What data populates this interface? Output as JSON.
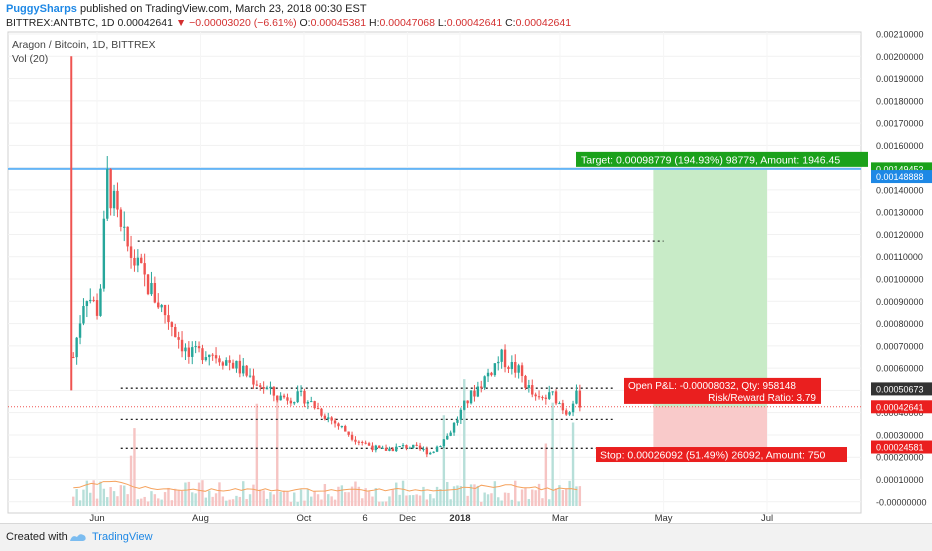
{
  "header": {
    "author": "PuggySharps",
    "published_text": "published on TradingView.com, March 23, 2018 00:30 EST",
    "symbol": "BITTREX:ANTBTC, 1D",
    "last": "0.00042641",
    "change": "−0.00003020 (−6.61%)",
    "o_label": "O:",
    "o_value": "0.00045381",
    "h_label": "H:",
    "h_value": "0.00047068",
    "l_label": "L:",
    "l_value": "0.00042641",
    "c_label": "C:",
    "c_value": "0.00042641"
  },
  "legend": {
    "title": "Aragon / Bitcoin, 1D, BITTREX",
    "volume": "Vol (20)"
  },
  "footer": {
    "created_with": "Created with",
    "brand": "TradingView"
  },
  "colors": {
    "up": "#26a69a",
    "down": "#ef5350",
    "target_zone": "#c8ebc7",
    "stop_zone": "#f9caca",
    "target_label": "#1ba11b",
    "stop_label": "#ea1f1f",
    "horizontal_line": "#64b5f6"
  },
  "chart_data": {
    "type": "candlestick",
    "ylim": [
      -1e-05,
      0.0021
    ],
    "y_ticks": [
      "0.00210000",
      "0.00200000",
      "0.00190000",
      "0.00180000",
      "0.00170000",
      "0.00160000",
      "0.00150000",
      "0.00140000",
      "0.00130000",
      "0.00120000",
      "0.00110000",
      "0.00100000",
      "0.00090000",
      "0.00080000",
      "0.00070000",
      "0.00060000",
      "0.00050000",
      "0.00040000",
      "0.00030000",
      "0.00020000",
      "0.00010000",
      "-0.00000000"
    ],
    "x_ticks": [
      "Jun",
      "Aug",
      "Oct",
      "6",
      "Dec",
      "2018",
      "Mar",
      "May",
      "Jul"
    ],
    "approx_close_path": [
      {
        "date": "2017-05-18",
        "price": 0.00065
      },
      {
        "date": "2017-05-25",
        "price": 0.00095
      },
      {
        "date": "2017-06-02",
        "price": 0.00085
      },
      {
        "date": "2017-06-07",
        "price": 0.00145
      },
      {
        "date": "2017-06-15",
        "price": 0.0012
      },
      {
        "date": "2017-06-25",
        "price": 0.00105
      },
      {
        "date": "2017-07-05",
        "price": 0.00092
      },
      {
        "date": "2017-07-15",
        "price": 0.0008
      },
      {
        "date": "2017-07-25",
        "price": 0.00065
      },
      {
        "date": "2017-08-05",
        "price": 0.00068
      },
      {
        "date": "2017-08-20",
        "price": 0.00062
      },
      {
        "date": "2017-09-01",
        "price": 0.00055
      },
      {
        "date": "2017-09-15",
        "price": 0.00047
      },
      {
        "date": "2017-10-01",
        "price": 0.00047
      },
      {
        "date": "2017-10-15",
        "price": 0.00038
      },
      {
        "date": "2017-11-01",
        "price": 0.00028
      },
      {
        "date": "2017-11-15",
        "price": 0.00023
      },
      {
        "date": "2017-12-01",
        "price": 0.00025
      },
      {
        "date": "2017-12-15",
        "price": 0.00022
      },
      {
        "date": "2017-12-25",
        "price": 0.0003
      },
      {
        "date": "2018-01-05",
        "price": 0.00045
      },
      {
        "date": "2018-01-15",
        "price": 0.00055
      },
      {
        "date": "2018-01-25",
        "price": 0.00065
      },
      {
        "date": "2018-02-05",
        "price": 0.00058
      },
      {
        "date": "2018-02-15",
        "price": 0.00045
      },
      {
        "date": "2018-02-25",
        "price": 0.00048
      },
      {
        "date": "2018-03-05",
        "price": 0.0004
      },
      {
        "date": "2018-03-10",
        "price": 0.00048
      },
      {
        "date": "2018-03-14",
        "price": 0.00043
      }
    ],
    "dotted_levels": [
      {
        "price": 0.00117,
        "from": "2017-06-25",
        "to": "2018-05-01"
      },
      {
        "price": 0.00051,
        "from": "2017-06-15",
        "to": "2018-04-01"
      },
      {
        "price": 0.00037,
        "from": "2017-06-15",
        "to": "2018-04-01"
      },
      {
        "price": 0.00024,
        "from": "2017-06-15",
        "to": "2018-04-01"
      }
    ],
    "horizontal_line": {
      "price": 0.0014945
    },
    "target_zone": {
      "from": "2018-04-25",
      "to": "2018-07-01",
      "low": 0.00042641,
      "high": 0.00149452
    },
    "stop_zone": {
      "from": "2018-04-25",
      "to": "2018-07-01",
      "low": 0.00024581,
      "high": 0.00042641
    },
    "labels": {
      "target": "Target: 0.00098779 (194.93%) 98779, Amount: 1946.45",
      "open_pl": "Open P&L: -0.00008032, Qty: 958148",
      "risk_reward": "Risk/Reward Ratio: 3.79",
      "stop": "Stop: 0.00026092 (51.49%) 26092, Amount: 750"
    },
    "price_badges": [
      {
        "value": "0.00149452",
        "price": 0.00149452,
        "color": "#1ba11b"
      },
      {
        "value": "0.00148888",
        "price": 0.00146,
        "color": "#1e88e5"
      },
      {
        "value": "0.00050673",
        "price": 0.00050673,
        "color": "#333333"
      },
      {
        "value": "0.00042641",
        "price": 0.00042641,
        "color": "#ea1f1f"
      },
      {
        "value": "0.00024581",
        "price": 0.00024581,
        "color": "#ea1f1f"
      }
    ]
  }
}
